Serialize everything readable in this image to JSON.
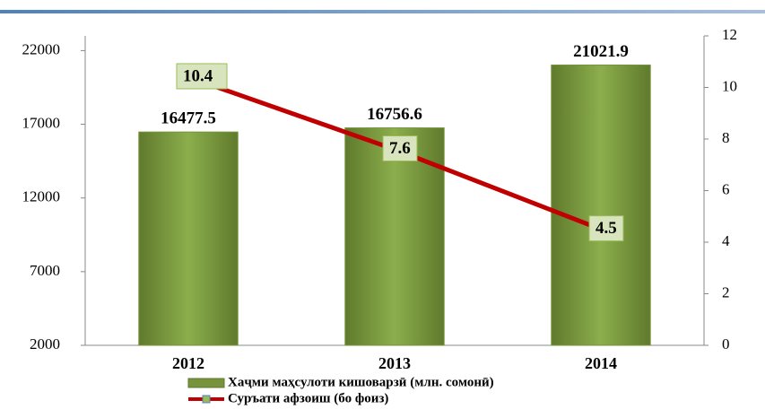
{
  "chart_data": {
    "type": "bar_line",
    "categories": [
      "2012",
      "2013",
      "2014"
    ],
    "series": [
      {
        "name": "Хаҷми маҳсулоти кишоварзӣ (млн. сомонӣ)",
        "type": "bar",
        "color": "#77933c",
        "values": [
          16477.5,
          16756.6,
          21021.9
        ]
      },
      {
        "name": "Суръати афзоиш (бо фоиз)",
        "type": "line",
        "axis": "y2",
        "color": "#c00000",
        "values": [
          10.4,
          7.6,
          4.5
        ]
      }
    ],
    "ylim": [
      2000,
      23000
    ],
    "yticks": [
      2000,
      7000,
      12000,
      17000,
      22000
    ],
    "y2lim": [
      0,
      12
    ],
    "y2ticks": [
      0,
      2,
      4,
      6,
      8,
      10,
      12
    ],
    "legend": "bottom"
  }
}
